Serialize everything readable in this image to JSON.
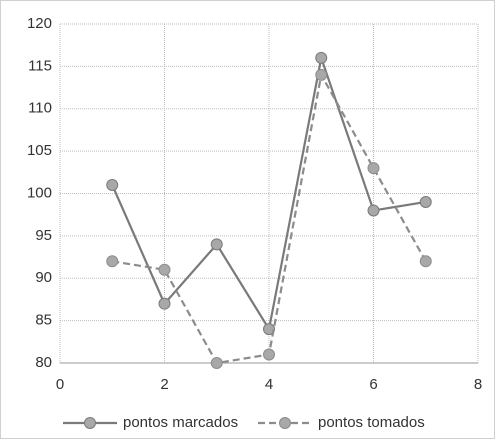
{
  "chart_data": {
    "type": "line",
    "x": [
      1,
      2,
      3,
      4,
      5,
      6,
      7
    ],
    "series": [
      {
        "name": "pontos marcados",
        "color": "#7a7a7a",
        "dashed": false,
        "values": [
          101,
          87,
          94,
          84,
          116,
          98,
          99
        ]
      },
      {
        "name": "pontos tomados",
        "color": "#8c8c8c",
        "dashed": true,
        "values": [
          92,
          91,
          80,
          81,
          114,
          103,
          92
        ]
      }
    ],
    "xlim": [
      0,
      8
    ],
    "xticks": [
      0,
      2,
      4,
      6,
      8
    ],
    "ylim": [
      80,
      120
    ],
    "yticks": [
      80,
      85,
      90,
      95,
      100,
      105,
      110,
      115,
      120
    ],
    "grid": true,
    "legend": "bottom"
  }
}
